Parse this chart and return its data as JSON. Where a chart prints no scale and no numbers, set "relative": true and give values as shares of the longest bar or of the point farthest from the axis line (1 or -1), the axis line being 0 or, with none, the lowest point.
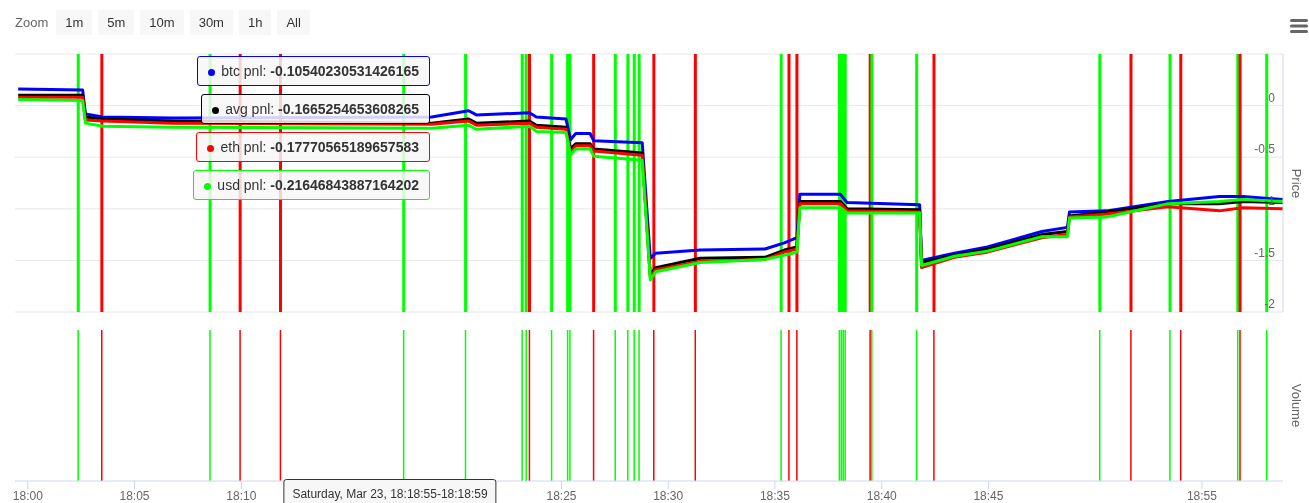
{
  "chart_data": [
    {
      "type": "line",
      "ylabel": "Price",
      "x": [
        17.9925,
        18.0428,
        18.045,
        18.0585,
        18.1126,
        18.3153,
        18.3442,
        18.3502,
        18.3917,
        18.397,
        18.4202,
        18.4237,
        18.4278,
        18.439,
        18.4418,
        18.4797,
        18.486,
        18.4902,
        18.525,
        18.5755,
        18.5907,
        18.6005,
        18.6028,
        18.6345,
        18.6397,
        18.6963,
        18.6978,
        18.7235,
        18.7492,
        18.7917,
        18.8117,
        18.8133,
        18.8423,
        18.8903,
        18.9303,
        18.9483,
        18.98
      ],
      "series": [
        {
          "color": "#0000ff",
          "values": [
            0.16,
            0.15,
            -0.08,
            -0.11,
            -0.12,
            -0.11,
            -0.05,
            -0.09,
            -0.07,
            -0.11,
            -0.13,
            -0.33,
            -0.27,
            -0.27,
            -0.34,
            -0.36,
            -1.48,
            -1.43,
            -1.4,
            -1.39,
            -1.33,
            -1.28,
            -0.86,
            -0.86,
            -0.94,
            -0.96,
            -1.5,
            -1.43,
            -1.37,
            -1.22,
            -1.18,
            -1.03,
            -1.02,
            -0.93,
            -0.88,
            -0.88,
            -0.91
          ]
        },
        {
          "color": "#000000",
          "values": [
            0.1,
            0.1,
            -0.11,
            -0.13,
            -0.15,
            -0.17,
            -0.13,
            -0.17,
            -0.15,
            -0.19,
            -0.21,
            -0.42,
            -0.37,
            -0.37,
            -0.42,
            -0.46,
            -1.64,
            -1.57,
            -1.48,
            -1.47,
            -1.4,
            -1.37,
            -0.93,
            -0.93,
            -1.0,
            -1.01,
            -1.52,
            -1.45,
            -1.39,
            -1.25,
            -1.22,
            -1.07,
            -1.03,
            -0.95,
            -0.95,
            -0.93,
            -0.94
          ]
        },
        {
          "color": "#ff0000",
          "values": [
            0.08,
            0.08,
            -0.14,
            -0.15,
            -0.17,
            -0.18,
            -0.15,
            -0.19,
            -0.17,
            -0.21,
            -0.23,
            -0.46,
            -0.39,
            -0.39,
            -0.44,
            -0.48,
            -1.66,
            -1.59,
            -1.51,
            -1.49,
            -1.42,
            -1.39,
            -0.95,
            -0.95,
            -1.02,
            -1.03,
            -1.57,
            -1.47,
            -1.42,
            -1.28,
            -1.25,
            -1.08,
            -1.05,
            -0.98,
            -1.02,
            -0.99,
            -1.0
          ]
        },
        {
          "color": "#00ff00",
          "values": [
            0.06,
            0.05,
            -0.17,
            -0.2,
            -0.21,
            -0.22,
            -0.19,
            -0.23,
            -0.2,
            -0.25,
            -0.26,
            -0.48,
            -0.42,
            -0.42,
            -0.49,
            -0.53,
            -1.69,
            -1.61,
            -1.52,
            -1.49,
            -1.45,
            -1.42,
            -0.99,
            -0.99,
            -1.04,
            -1.04,
            -1.55,
            -1.46,
            -1.41,
            -1.27,
            -1.27,
            -1.09,
            -1.08,
            -0.95,
            -0.93,
            -0.91,
            -0.93
          ]
        }
      ],
      "xlim": [
        17.99,
        18.98
      ],
      "ylim": [
        -2,
        0.5
      ],
      "yticks": [
        {
          "value": 0.5,
          "label": null
        },
        0,
        -0.5,
        -1,
        -1.5,
        -2
      ],
      "grid": "y",
      "tick_labels": "y",
      "line_style": "solid",
      "marker": "none",
      "legend": false,
      "ref_lines": [
        {
          "axis": "x",
          "value": 18.0394,
          "color": "#00ff00"
        },
        {
          "axis": "x",
          "value": 18.0578,
          "color": "#ff0000"
        },
        {
          "axis": "x",
          "value": 18.1423,
          "color": "#00ff00"
        },
        {
          "axis": "x",
          "value": 18.1658,
          "color": "#ff0000"
        },
        {
          "axis": "x",
          "value": 18.1973,
          "color": "#ff0000"
        },
        {
          "axis": "x",
          "value": 18.2935,
          "color": "#00ff00"
        },
        {
          "axis": "x",
          "value": 18.3418,
          "color": "#00ff00"
        },
        {
          "axis": "x",
          "value": 18.386,
          "color": "#00ff00"
        },
        {
          "axis": "x",
          "value": 18.3892,
          "color": "#00ff00"
        },
        {
          "axis": "x",
          "value": 18.3917,
          "color": "#ff0000"
        },
        {
          "axis": "x",
          "value": 18.409,
          "color": "#00ff00"
        },
        {
          "axis": "x",
          "value": 18.4215,
          "color": "#00ff00"
        },
        {
          "axis": "x",
          "value": 18.4233,
          "color": "#00ff00"
        },
        {
          "axis": "x",
          "value": 18.4418,
          "color": "#ff0000"
        },
        {
          "axis": "x",
          "value": 18.4587,
          "color": "#00ff00"
        },
        {
          "axis": "x",
          "value": 18.4685,
          "color": "#00ff00"
        },
        {
          "axis": "x",
          "value": 18.4735,
          "color": "#00ff00"
        },
        {
          "axis": "x",
          "value": 18.4773,
          "color": "#00ff00"
        },
        {
          "axis": "x",
          "value": 18.4888,
          "color": "#ff0000"
        },
        {
          "axis": "x",
          "value": 18.5212,
          "color": "#ff0000"
        },
        {
          "axis": "x",
          "value": 18.5882,
          "color": "#00ff00"
        },
        {
          "axis": "x",
          "value": 18.5943,
          "color": "#ff0000"
        },
        {
          "axis": "x",
          "value": 18.6005,
          "color": "#ff0000"
        },
        {
          "axis": "x",
          "value": 18.6337,
          "color": "#00ff00"
        },
        {
          "axis": "x",
          "value": 18.6352,
          "color": "#00ff00"
        },
        {
          "axis": "x",
          "value": 18.6367,
          "color": "#00ff00"
        },
        {
          "axis": "x",
          "value": 18.6382,
          "color": "#00ff00"
        },
        {
          "axis": "x",
          "value": 18.6577,
          "color": "#ff0000"
        },
        {
          "axis": "x",
          "value": 18.659,
          "color": "#00ff00"
        },
        {
          "axis": "x",
          "value": 18.694,
          "color": "#00ff00"
        },
        {
          "axis": "x",
          "value": 18.7075,
          "color": "#ff0000"
        },
        {
          "axis": "x",
          "value": 18.837,
          "color": "#00ff00"
        },
        {
          "axis": "x",
          "value": 18.8613,
          "color": "#ff0000"
        },
        {
          "axis": "x",
          "value": 18.8918,
          "color": "#00ff00"
        },
        {
          "axis": "x",
          "value": 18.9002,
          "color": "#ff0000"
        },
        {
          "axis": "x",
          "value": 18.9447,
          "color": "#00ff00"
        },
        {
          "axis": "x",
          "value": 18.9465,
          "color": "#ff0000"
        },
        {
          "axis": "x",
          "value": 18.9673,
          "color": "#00ff00"
        }
      ],
      "annotations": [
        "Zoom",
        "1m",
        "5m",
        "10m",
        "30m",
        "1h",
        "All",
        "btc pnl: -0.10540230531426165",
        "avg pnl: -0.1665254653608265",
        "eth pnl: -0.17770565189657583",
        "usd pnl: -0.21646843887164202"
      ]
    },
    {
      "type": "bar",
      "ylabel": "Volume",
      "relative": true,
      "tick_labels": "x",
      "legend": false,
      "x": [
        18.0394,
        18.0578,
        18.1423,
        18.1658,
        18.1973,
        18.2935,
        18.3418,
        18.386,
        18.3892,
        18.3917,
        18.409,
        18.4215,
        18.4233,
        18.4418,
        18.4587,
        18.4685,
        18.4735,
        18.4773,
        18.4888,
        18.5212,
        18.5882,
        18.5943,
        18.6005,
        18.6337,
        18.6352,
        18.6367,
        18.6382,
        18.6577,
        18.659,
        18.694,
        18.7075,
        18.837,
        18.8613,
        18.8918,
        18.9002,
        18.9447,
        18.9465,
        18.9673
      ],
      "values": [
        1,
        1,
        1,
        1,
        1,
        1,
        1,
        1,
        1,
        1,
        1,
        1,
        1,
        1,
        1,
        1,
        1,
        1,
        1,
        1,
        1,
        1,
        1,
        1,
        1,
        1,
        1,
        1,
        1,
        1,
        1,
        1,
        1,
        1,
        1,
        1,
        1,
        1
      ],
      "colors": [
        "#00ff00",
        "#ff0000",
        "#00ff00",
        "#ff0000",
        "#ff0000",
        "#00ff00",
        "#00ff00",
        "#00ff00",
        "#00ff00",
        "#ff0000",
        "#00ff00",
        "#00ff00",
        "#00ff00",
        "#ff0000",
        "#00ff00",
        "#00ff00",
        "#00ff00",
        "#00ff00",
        "#ff0000",
        "#ff0000",
        "#00ff00",
        "#ff0000",
        "#ff0000",
        "#00ff00",
        "#00ff00",
        "#00ff00",
        "#00ff00",
        "#ff0000",
        "#00ff00",
        "#00ff00",
        "#ff0000",
        "#00ff00",
        "#ff0000",
        "#00ff00",
        "#ff0000",
        "#00ff00",
        "#ff0000",
        "#00ff00"
      ],
      "xlim": [
        17.99,
        18.98
      ],
      "xticks": [
        {
          "value": 18,
          "label": "18:00"
        },
        {
          "value": 18.0833,
          "label": "18:05"
        },
        {
          "value": 18.1667,
          "label": "18:10"
        },
        {
          "value": 18.4167,
          "label": "18:25"
        },
        {
          "value": 18.5,
          "label": "18:30"
        },
        {
          "value": 18.5833,
          "label": "18:35"
        },
        {
          "value": 18.6667,
          "label": "18:40"
        },
        {
          "value": 18.75,
          "label": "18:45"
        },
        {
          "value": 18.9167,
          "label": "18:55"
        }
      ],
      "annotations": [
        "Saturday, Mar 23, 18:18:55-18:18:59"
      ]
    }
  ]
}
